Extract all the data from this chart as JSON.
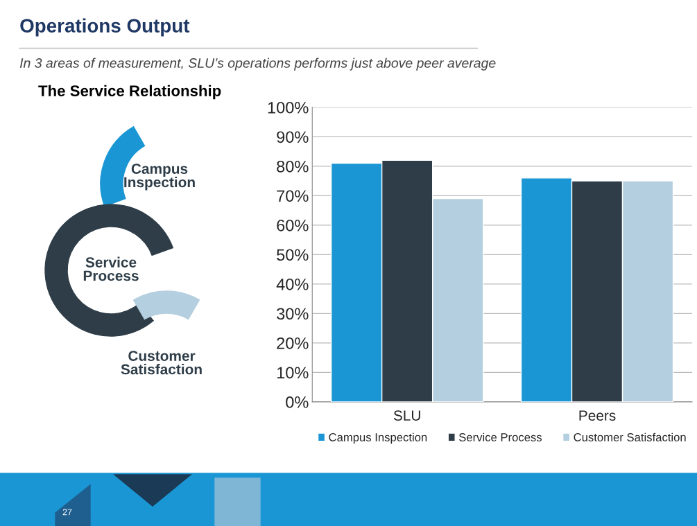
{
  "chart_data": {
    "type": "bar",
    "title": "Operations Output",
    "subtitle": "In 3 areas of measurement, SLU’s operations performs just above peer average",
    "categories": [
      "SLU",
      "Peers"
    ],
    "series": [
      {
        "name": "Campus Inspection",
        "color": "#1a96d4",
        "values": [
          81,
          76
        ]
      },
      {
        "name": "Service Process",
        "color": "#2e3d48",
        "values": [
          82,
          75
        ]
      },
      {
        "name": "Customer Satisfaction",
        "color": "#b4cfdf",
        "values": [
          69,
          75
        ]
      }
    ],
    "ylim": [
      0,
      100
    ],
    "yticks": [
      {
        "value": 0,
        "label": "0%"
      },
      {
        "value": 10,
        "label": "10%"
      },
      {
        "value": 20,
        "label": "20%"
      },
      {
        "value": 30,
        "label": "30%"
      },
      {
        "value": 40,
        "label": "40%"
      },
      {
        "value": 50,
        "label": "50%"
      },
      {
        "value": 60,
        "label": "60%"
      },
      {
        "value": 70,
        "label": "70%"
      },
      {
        "value": 80,
        "label": "80%"
      },
      {
        "value": 90,
        "label": "90%"
      },
      {
        "value": 100,
        "label": "100%"
      }
    ],
    "grid": "y",
    "legend": "bottom",
    "annotations": [
      "The Service Relationship",
      "Campus Inspection",
      "Service Process",
      "Customer Satisfaction",
      "27"
    ]
  }
}
